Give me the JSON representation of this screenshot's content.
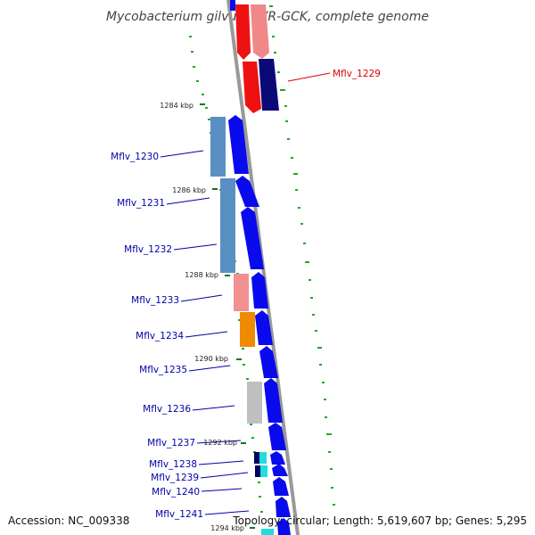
{
  "title": "Mycobacterium gilvum PYR-GCK, complete genome",
  "accession_text": "Accession: NC_009338",
  "summary_text": "Topology: circular; Length: 5,619,607 bp; Genes: 5,295",
  "colors": {
    "backbone": "#999999",
    "cds": "#0a0aee",
    "highlight_label": "#dd0000",
    "label": "#0000aa",
    "kbp_tick": "#117711"
  },
  "kbp_labels": [
    "1284 kbp",
    "1286 kbp",
    "1288 kbp",
    "1290 kbp",
    "1292 kbp",
    "1294 kbp"
  ],
  "genes": [
    {
      "name": "Mflv_1229",
      "highlight": true
    },
    {
      "name": "Mflv_1230"
    },
    {
      "name": "Mflv_1231"
    },
    {
      "name": "Mflv_1232"
    },
    {
      "name": "Mflv_1233"
    },
    {
      "name": "Mflv_1234"
    },
    {
      "name": "Mflv_1235"
    },
    {
      "name": "Mflv_1236"
    },
    {
      "name": "Mflv_1237"
    },
    {
      "name": "Mflv_1238"
    },
    {
      "name": "Mflv_1239"
    },
    {
      "name": "Mflv_1240"
    },
    {
      "name": "Mflv_1241"
    }
  ]
}
